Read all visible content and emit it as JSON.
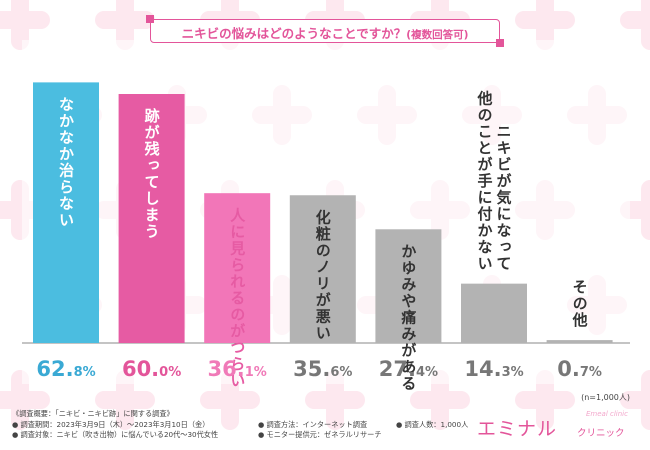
{
  "title": {
    "main": "ニキビの悩みはどのようなことですか？",
    "sub": "(複数回答可)"
  },
  "chart_data": {
    "type": "bar",
    "categories": [
      "なかなか治らない",
      "跡が残ってしまう",
      "人に見られるのがつらい",
      "化粧のノリが悪い",
      "かゆみや痛みがある",
      "ニキビが気になって他のことが手に付かない",
      "その他"
    ],
    "bar_label_lines": [
      [
        "なかなか治らない"
      ],
      [
        "跡が残ってしまう"
      ],
      [
        "人に見られるのがつらい"
      ],
      [
        "化粧のノリが悪い"
      ],
      [
        "かゆみや痛みがある"
      ],
      [
        "ニキビが気になって",
        "他のことが手に付かない"
      ],
      [
        "その他"
      ]
    ],
    "values": [
      62.8,
      60.0,
      36.1,
      35.6,
      27.4,
      14.3,
      0.7
    ],
    "value_labels": [
      {
        "int": "62.",
        "dec": "8%"
      },
      {
        "int": "60.",
        "dec": "0%"
      },
      {
        "int": "36.",
        "dec": "1%"
      },
      {
        "int": "35.",
        "dec": "6%"
      },
      {
        "int": "27.",
        "dec": "4%"
      },
      {
        "int": "14.",
        "dec": "3%"
      },
      {
        "int": "0.",
        "dec": "7%"
      }
    ],
    "colors": [
      "#4bbde0",
      "#e65ba3",
      "#f276b8",
      "#b3b3b3",
      "#b3b3b3",
      "#b3b3b3",
      "#b3b3b3"
    ],
    "label_colors": [
      "#ffffff",
      "#ffffff",
      "#e65ba3",
      "#333333",
      "#333333",
      "#333333",
      "#333333"
    ],
    "value_colors": [
      "#3aa9d4",
      "#e3559a",
      "#f07ab8",
      "#777777",
      "#777777",
      "#777777",
      "#777777"
    ],
    "ylim": [
      0,
      100
    ],
    "sample_note": "(n=1,000人)"
  },
  "footer": {
    "overview": "《調査概要：「ニキビ・ニキビ跡」に関する調査》",
    "period": "● 調査期間：2023年3月9日（木）〜2023年3月10日（金）",
    "method": "● 調査方法：インターネット調査",
    "count": "● 調査人数：1,000人",
    "target": "● 調査対象：ニキビ（吹き出物）に悩んでいる20代〜30代女性",
    "provider": "● モニター提供元：ゼネラルリサーチ"
  },
  "logo": {
    "main": "エミナル",
    "sub": "クリニック",
    "script": "Emeal clinic"
  },
  "colors": {
    "accent": "#e3559a",
    "background_pattern": "#fde8ef"
  }
}
